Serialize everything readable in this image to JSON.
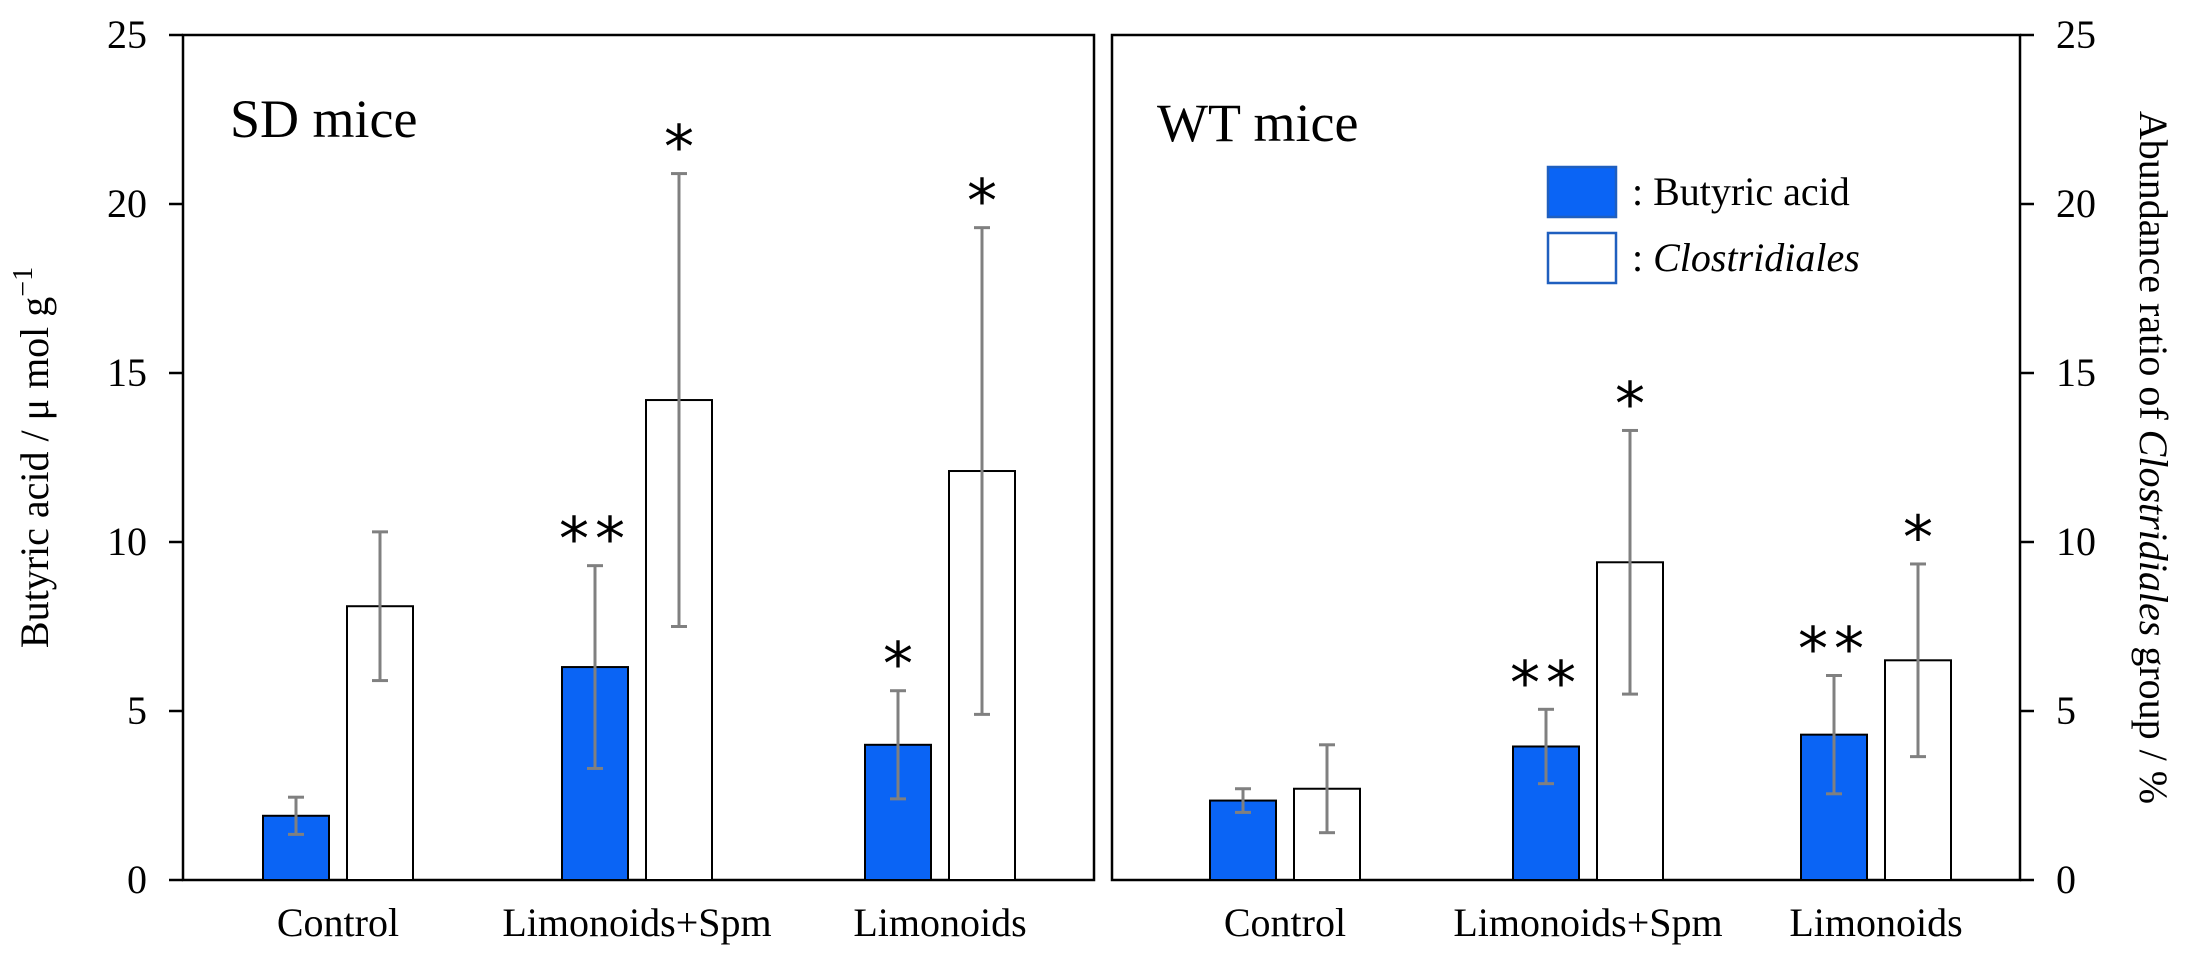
{
  "colors": {
    "butyric": "#0a64f5",
    "clostridiales_fill": "#ffffff",
    "clostridiales_stroke": "#000000",
    "legend_box_stroke": "#1f5fbf",
    "error_bar": "#808080"
  },
  "chart_data": {
    "type": "bar",
    "y_left": {
      "label_prefix": "Butyric acid / μ mol g",
      "label_superscript": "−1",
      "ylim": [
        0,
        25
      ],
      "ticks": [
        0,
        5,
        10,
        15,
        20,
        25
      ]
    },
    "y_right": {
      "label_prefix": "Abundance ratio of ",
      "label_italic": "Clostridiales",
      "label_suffix": " group / %",
      "ylim": [
        0,
        25
      ],
      "ticks": [
        0,
        5,
        10,
        15,
        20,
        25
      ]
    },
    "legend": [
      {
        "key": "butyric",
        "prefix": ": ",
        "label": "Butyric acid",
        "italic": false
      },
      {
        "key": "clostridiales",
        "prefix": ": ",
        "label": "Clostridiales",
        "italic": true
      }
    ],
    "panels": [
      {
        "title": "SD mice",
        "categories": [
          "Control",
          "Limonoids+Spm",
          "Limonoids"
        ],
        "series": [
          {
            "name": "Butyric acid",
            "key": "butyric",
            "values": [
              1.9,
              6.3,
              4.0
            ],
            "errors": [
              0.55,
              3.0,
              1.6
            ],
            "significance": [
              "",
              "**",
              "*"
            ]
          },
          {
            "name": "Clostridiales",
            "key": "clostridiales",
            "values": [
              8.1,
              14.2,
              12.1
            ],
            "errors": [
              2.2,
              6.7,
              7.2
            ],
            "significance": [
              "",
              "*",
              "*"
            ]
          }
        ]
      },
      {
        "title": "WT mice",
        "categories": [
          "Control",
          "Limonoids+Spm",
          "Limonoids"
        ],
        "series": [
          {
            "name": "Butyric acid",
            "key": "butyric",
            "values": [
              2.35,
              3.95,
              4.3
            ],
            "errors": [
              0.35,
              1.1,
              1.75
            ],
            "significance": [
              "",
              "**",
              "**"
            ]
          },
          {
            "name": "Clostridiales",
            "key": "clostridiales",
            "values": [
              2.7,
              9.4,
              6.5
            ],
            "errors": [
              1.3,
              3.9,
              2.85
            ],
            "significance": [
              "",
              "*",
              "*"
            ]
          }
        ]
      }
    ]
  }
}
